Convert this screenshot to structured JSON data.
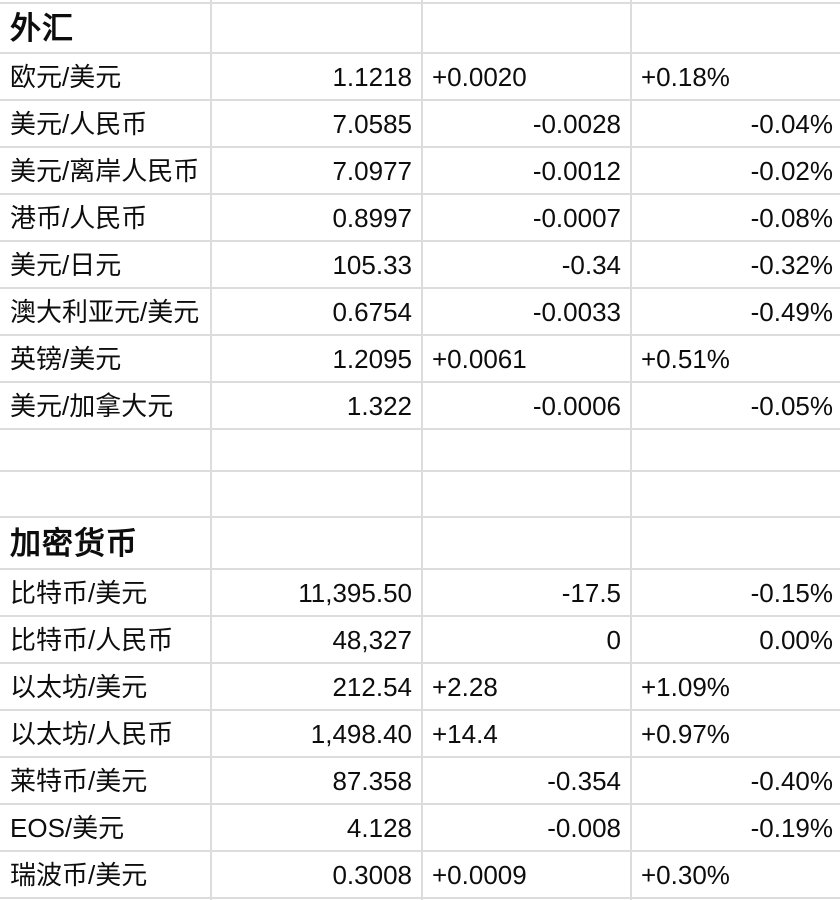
{
  "theme": {
    "grid_color": "#dcdcdc",
    "text_color": "#0d0d0d",
    "background_color": "#ffffff"
  },
  "table": {
    "columns": [
      "pair",
      "price",
      "change",
      "change_pct"
    ],
    "sections": [
      {
        "title": "外汇",
        "rows": [
          {
            "pair": "欧元/美元",
            "price": "1.1218",
            "change": "+0.0020",
            "pct": "+0.18%"
          },
          {
            "pair": "美元/人民币",
            "price": "7.0585",
            "change": "-0.0028",
            "pct": "-0.04%"
          },
          {
            "pair": "美元/离岸人民币",
            "price": "7.0977",
            "change": "-0.0012",
            "pct": "-0.02%"
          },
          {
            "pair": "港币/人民币",
            "price": "0.8997",
            "change": "-0.0007",
            "pct": "-0.08%"
          },
          {
            "pair": "美元/日元",
            "price": "105.33",
            "change": "-0.34",
            "pct": "-0.32%"
          },
          {
            "pair": "澳大利亚元/美元",
            "price": "0.6754",
            "change": "-0.0033",
            "pct": "-0.49%"
          },
          {
            "pair": "英镑/美元",
            "price": "1.2095",
            "change": "+0.0061",
            "pct": "+0.51%"
          },
          {
            "pair": "美元/加拿大元",
            "price": "1.322",
            "change": "-0.0006",
            "pct": "-0.05%"
          }
        ]
      },
      {
        "title": "加密货币",
        "rows": [
          {
            "pair": "比特币/美元",
            "price": "11,395.50",
            "change": "-17.5",
            "pct": "-0.15%"
          },
          {
            "pair": "比特币/人民币",
            "price": "48,327",
            "change": "0",
            "pct": "0.00%"
          },
          {
            "pair": "以太坊/美元",
            "price": "212.54",
            "change": "+2.28",
            "pct": "+1.09%"
          },
          {
            "pair": "以太坊/人民币",
            "price": "1,498.40",
            "change": "+14.4",
            "pct": "+0.97%"
          },
          {
            "pair": "莱特币/美元",
            "price": "87.358",
            "change": "-0.354",
            "pct": "-0.40%"
          },
          {
            "pair": "EOS/美元",
            "price": "4.128",
            "change": "-0.008",
            "pct": "-0.19%"
          },
          {
            "pair": "瑞波币/美元",
            "price": "0.3008",
            "change": "+0.0009",
            "pct": "+0.30%"
          }
        ]
      }
    ]
  }
}
